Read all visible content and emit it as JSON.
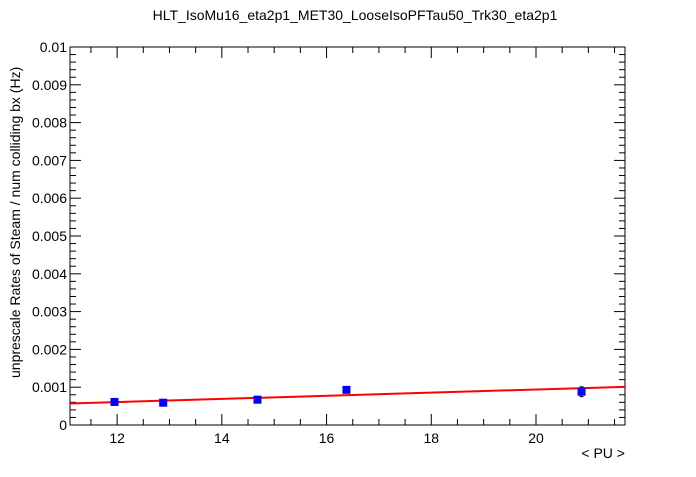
{
  "chart_data": {
    "type": "scatter",
    "title": "HLT_IsoMu16_eta2p1_MET30_LooseIsoPFTau50_Trk30_eta2p1",
    "xlabel": "< PU >",
    "ylabel": "unprescale Rates of Steam / num colliding bx (Hz)",
    "xlim": [
      11.1,
      21.7
    ],
    "ylim": [
      0,
      0.01
    ],
    "x_ticks": [
      "12",
      "14",
      "16",
      "18",
      "20"
    ],
    "x_tick_values": [
      12,
      14,
      16,
      18,
      20
    ],
    "y_ticks": [
      "0",
      "0.001",
      "0.002",
      "0.003",
      "0.004",
      "0.005",
      "0.006",
      "0.007",
      "0.008",
      "0.009",
      "0.01"
    ],
    "y_tick_values": [
      0,
      0.001,
      0.002,
      0.003,
      0.004,
      0.005,
      0.006,
      0.007,
      0.008,
      0.009,
      0.01
    ],
    "series": [
      {
        "name": "data",
        "x": [
          11.95,
          12.88,
          14.68,
          16.38,
          20.87
        ],
        "y": [
          0.00061,
          0.00059,
          0.00067,
          0.00093,
          0.00088
        ],
        "yerr": [
          5e-05,
          5e-05,
          5e-05,
          5e-05,
          0.00013
        ]
      }
    ],
    "fit": {
      "name": "fit",
      "x": [
        11.1,
        21.7
      ],
      "y": [
        0.00057,
        0.00101
      ]
    },
    "colors": {
      "markers": "#0000ff",
      "fit": "#ff0000",
      "axes": "#000000"
    }
  }
}
